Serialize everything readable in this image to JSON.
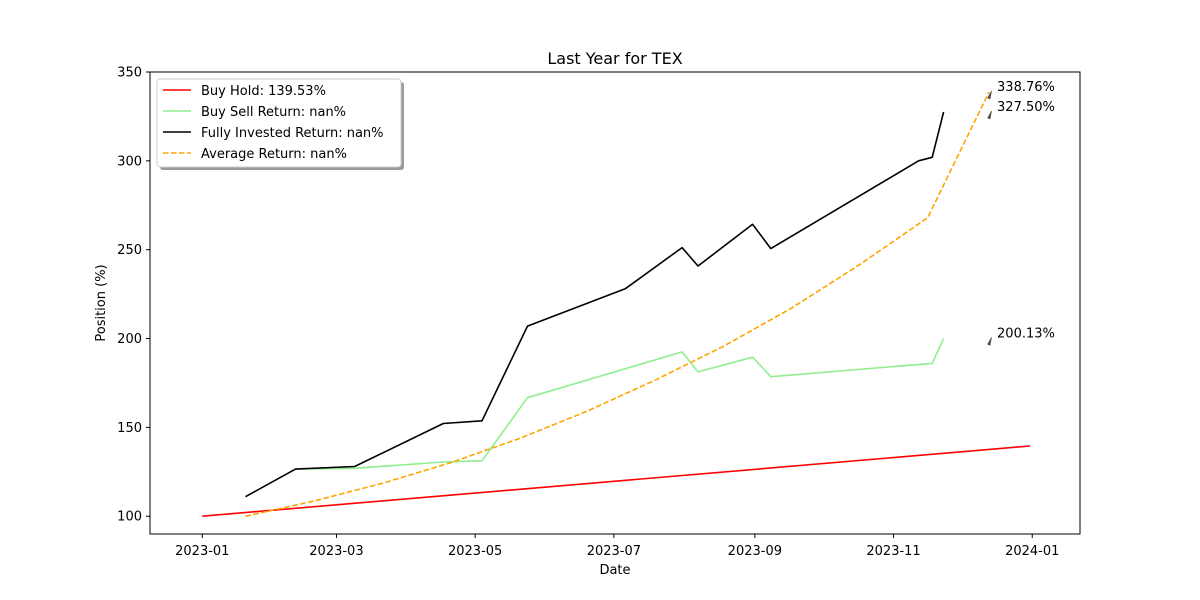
{
  "chart_data": {
    "type": "line",
    "title": "Last Year for TEX",
    "xlabel": "Date",
    "ylabel": "Position (%)",
    "xlim": [
      "2022-12-09",
      "2024-01-22"
    ],
    "ylim": [
      90,
      350
    ],
    "x_ticks": [
      "2023-01",
      "2023-03",
      "2023-05",
      "2023-07",
      "2023-09",
      "2023-11",
      "2024-01"
    ],
    "y_ticks": [
      100,
      150,
      200,
      250,
      300,
      350
    ],
    "grid": false,
    "legend_position": "upper left",
    "series": [
      {
        "name": "Buy Hold: 139.53%",
        "color": "#ff0000",
        "style": "solid",
        "points": [
          {
            "x": "2023-01-01",
            "y": 100
          },
          {
            "x": "2023-12-31",
            "y": 139.53
          }
        ]
      },
      {
        "name": "Buy Sell Return: nan%",
        "color": "#90ee90",
        "style": "solid",
        "points": [
          {
            "x": "2023-02-11",
            "y": 126.5
          },
          {
            "x": "2023-03-09",
            "y": 127
          },
          {
            "x": "2023-04-17",
            "y": 130.5
          },
          {
            "x": "2023-05-04",
            "y": 131.2
          },
          {
            "x": "2023-05-24",
            "y": 166.7
          },
          {
            "x": "2023-07-31",
            "y": 192.5
          },
          {
            "x": "2023-08-07",
            "y": 181.2
          },
          {
            "x": "2023-08-31",
            "y": 189.5
          },
          {
            "x": "2023-09-08",
            "y": 178.5
          },
          {
            "x": "2023-11-18",
            "y": 186
          },
          {
            "x": "2023-11-23",
            "y": 200.1
          }
        ]
      },
      {
        "name": "Fully Invested Return: nan%",
        "color": "#000000",
        "style": "solid",
        "points": [
          {
            "x": "2023-01-20",
            "y": 111
          },
          {
            "x": "2023-02-11",
            "y": 126.5
          },
          {
            "x": "2023-03-09",
            "y": 128
          },
          {
            "x": "2023-04-17",
            "y": 152.2
          },
          {
            "x": "2023-05-04",
            "y": 153.7
          },
          {
            "x": "2023-05-24",
            "y": 207
          },
          {
            "x": "2023-07-06",
            "y": 228
          },
          {
            "x": "2023-07-31",
            "y": 251.2
          },
          {
            "x": "2023-08-07",
            "y": 240.8
          },
          {
            "x": "2023-08-31",
            "y": 264.3
          },
          {
            "x": "2023-09-08",
            "y": 250.6
          },
          {
            "x": "2023-11-12",
            "y": 300
          },
          {
            "x": "2023-11-18",
            "y": 302
          },
          {
            "x": "2023-11-23",
            "y": 327.5
          }
        ]
      },
      {
        "name": "Average Return: nan%",
        "color": "#ffa500",
        "style": "dashed",
        "points": [
          {
            "x": "2023-01-20",
            "y": 100
          },
          {
            "x": "2023-02-19",
            "y": 108.5
          },
          {
            "x": "2023-03-21",
            "y": 118.5
          },
          {
            "x": "2023-04-20",
            "y": 130
          },
          {
            "x": "2023-05-20",
            "y": 143.5
          },
          {
            "x": "2023-06-19",
            "y": 159
          },
          {
            "x": "2023-07-19",
            "y": 176.5
          },
          {
            "x": "2023-08-18",
            "y": 195.5
          },
          {
            "x": "2023-09-17",
            "y": 217
          },
          {
            "x": "2023-10-17",
            "y": 241.5
          },
          {
            "x": "2023-11-16",
            "y": 268
          },
          {
            "x": "2023-12-13",
            "y": 338.76
          }
        ]
      }
    ],
    "annotations": [
      {
        "text": "338.76%",
        "x": "2023-12-13",
        "y": 338.76
      },
      {
        "text": "327.50%",
        "x": "2023-12-13",
        "y": 327.5
      },
      {
        "text": "200.13%",
        "x": "2023-12-13",
        "y": 200.13
      }
    ]
  }
}
